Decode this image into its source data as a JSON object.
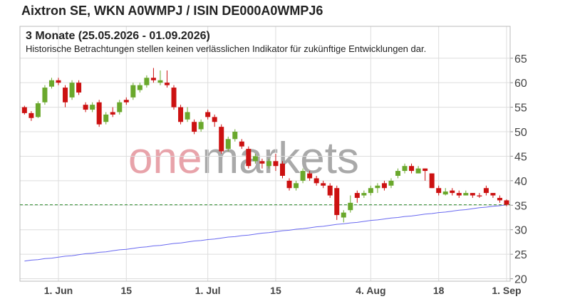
{
  "chart_data": {
    "type": "candlestick",
    "title": "Aixtron SE, WKN A0WMPJ / ISIN DE000A0WMPJ6",
    "subtitle": "3 Monate (25.05.2026 - 01.09.2026)",
    "note": "Historische Betrachtungen stellen keinen verlässlichen Indikator für zukünftige Entwicklungen dar.",
    "watermark": [
      "one",
      "markets"
    ],
    "categories": [
      null,
      null,
      null,
      null,
      null,
      "1. Jun",
      null,
      null,
      null,
      null,
      null,
      null,
      null,
      null,
      null,
      "15",
      null,
      null,
      null,
      null,
      null,
      null,
      null,
      null,
      null,
      null,
      null,
      "1. Jul",
      null,
      null,
      null,
      null,
      null,
      null,
      null,
      null,
      null,
      "15",
      null,
      null,
      null,
      null,
      null,
      null,
      null,
      null,
      null,
      null,
      null,
      null,
      null,
      "4. Aug",
      null,
      null,
      null,
      null,
      null,
      null,
      null,
      null,
      null,
      "18",
      null,
      null,
      null,
      null,
      null,
      null,
      null,
      null,
      null,
      "1. Sep"
    ],
    "open": [
      55,
      53.8,
      53,
      56,
      59.2,
      60.5,
      59,
      57,
      60,
      55.5,
      54.5,
      56,
      52,
      54,
      54,
      56.5,
      57,
      58.5,
      59.5,
      61,
      60,
      60,
      59,
      55,
      52.5,
      52,
      50.5,
      54,
      53,
      51,
      46.5,
      48.5,
      48,
      46.5,
      44,
      44,
      43,
      44,
      43.5,
      40,
      38.5,
      40,
      41.5,
      40.5,
      39.5,
      39,
      38.5,
      32.5,
      34,
      37.5,
      37,
      37.5,
      38.5,
      39.5,
      39,
      41,
      42,
      43,
      41.5,
      42.5,
      41.5,
      38.5,
      37.2,
      38,
      37.5,
      37,
      37.5,
      37,
      38.5,
      37.5,
      36.5,
      36
    ],
    "high": [
      55.3,
      54.2,
      56.2,
      59.5,
      61,
      61,
      59.5,
      60.5,
      60.5,
      56,
      56,
      56.5,
      54,
      55,
      56.5,
      57,
      60,
      60,
      61.5,
      63,
      62.5,
      62.5,
      59.5,
      55.5,
      55,
      52.5,
      52.5,
      54.5,
      53.5,
      51.5,
      49,
      50.5,
      48.5,
      47,
      45.5,
      44.5,
      44.5,
      45.5,
      44,
      40.5,
      40,
      42.5,
      42,
      41,
      40,
      39.5,
      39,
      34,
      37,
      38,
      38,
      39,
      39.5,
      40,
      40.5,
      42.5,
      43.5,
      43.5,
      43,
      42.5,
      41.5,
      39,
      38.5,
      38.5,
      38,
      38,
      37.5,
      37.5,
      39,
      37.5,
      37,
      36.2
    ],
    "low": [
      53.5,
      52.2,
      52.8,
      55.5,
      58.8,
      59.5,
      55,
      56.5,
      57.5,
      54,
      54,
      51,
      51.5,
      53,
      53.5,
      55.5,
      56.5,
      58,
      59,
      60,
      59.5,
      59,
      54.5,
      51.5,
      52,
      49.5,
      50,
      52.5,
      51,
      45.5,
      46,
      48,
      46.5,
      42.5,
      43.5,
      42.5,
      42.5,
      42,
      40.5,
      38,
      38,
      39.5,
      40,
      39,
      38.5,
      36.5,
      32,
      31.5,
      33.5,
      35.5,
      36.5,
      37,
      37.5,
      38,
      38.5,
      40.5,
      41.5,
      41.5,
      41.5,
      40,
      38.5,
      37,
      37,
      37,
      36.5,
      37,
      36.5,
      36.5,
      37,
      36.5,
      35.5,
      34.8
    ],
    "close": [
      53.8,
      52.8,
      55.8,
      59,
      60.5,
      60,
      56,
      60,
      58,
      54.5,
      55.5,
      51.5,
      53.5,
      53.5,
      56,
      56,
      59.5,
      59.5,
      61,
      60.5,
      60.5,
      59.5,
      55,
      52,
      54,
      50,
      52,
      53,
      52,
      46,
      48.5,
      50,
      47,
      43,
      45,
      43.5,
      44,
      43,
      41,
      38.5,
      39.5,
      42,
      40.5,
      39.5,
      39,
      37,
      33,
      33.5,
      35.5,
      36.5,
      37.5,
      38.5,
      39,
      38.5,
      40,
      42,
      43,
      42,
      42.5,
      42,
      38.5,
      37.5,
      37.8,
      37.5,
      37,
      37.5,
      37,
      36.8,
      37.5,
      37,
      36,
      35.1
    ],
    "up_color": "#6aa82c",
    "down_color": "#cc1111",
    "ma": {
      "color": "#6868f0",
      "values": [
        23.6,
        23.8,
        23.9,
        24.1,
        24.2,
        24.4,
        24.6,
        24.7,
        24.9,
        25.1,
        25.2,
        25.4,
        25.5,
        25.7,
        25.9,
        26.0,
        26.2,
        26.4,
        26.5,
        26.7,
        26.8,
        27.0,
        27.2,
        27.3,
        27.5,
        27.7,
        27.8,
        28.0,
        28.1,
        28.3,
        28.5,
        28.6,
        28.8,
        28.9,
        29.1,
        29.3,
        29.4,
        29.6,
        29.8,
        29.9,
        30.1,
        30.2,
        30.4,
        30.6,
        30.7,
        30.9,
        31.1,
        31.2,
        31.4,
        31.5,
        31.7,
        31.9,
        32.0,
        32.2,
        32.4,
        32.5,
        32.7,
        32.8,
        33.0,
        33.2,
        33.3,
        33.5,
        33.6,
        33.8,
        34.0,
        34.1,
        34.3,
        34.5,
        34.6,
        34.8,
        34.9,
        35.1
      ]
    },
    "hline": {
      "value": 35.1,
      "color": "#2a8a2a"
    },
    "ylim": [
      19.5,
      71.5
    ],
    "yticks": [
      20,
      25,
      30,
      35,
      40,
      45,
      50,
      55,
      60,
      65
    ],
    "grid": true
  }
}
